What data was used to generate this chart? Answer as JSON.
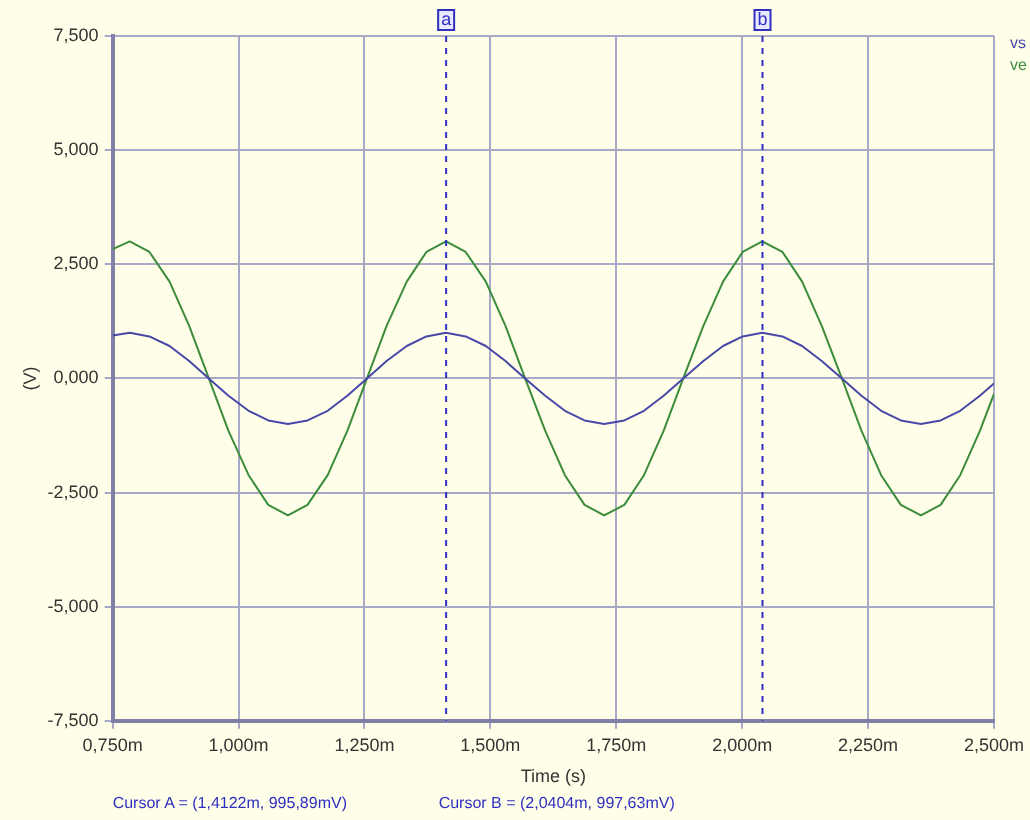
{
  "chart_data": {
    "type": "line",
    "xlabel": "Time (s)",
    "ylabel": "(V)",
    "x": [
      0.75,
      0.784,
      0.823,
      0.863,
      0.902,
      0.941,
      0.98,
      1.02,
      1.059,
      1.098,
      1.137,
      1.177,
      1.216,
      1.255,
      1.294,
      1.334,
      1.373,
      1.412,
      1.451,
      1.491,
      1.53,
      1.569,
      1.609,
      1.648,
      1.687,
      1.726,
      1.766,
      1.805,
      1.844,
      1.883,
      1.923,
      1.962,
      2.001,
      2.04,
      2.08,
      2.119,
      2.158,
      2.198,
      2.237,
      2.276,
      2.315,
      2.355,
      2.394,
      2.433,
      2.472,
      2.5
    ],
    "series": [
      {
        "name": "vs",
        "color": "#4848a8",
        "values": [
          0.94,
          1,
          0.92,
          0.71,
          0.38,
          0,
          -0.38,
          -0.71,
          -0.92,
          -1,
          -0.92,
          -0.71,
          -0.38,
          0,
          0.38,
          0.71,
          0.92,
          1,
          0.92,
          0.71,
          0.38,
          0,
          -0.38,
          -0.71,
          -0.92,
          -1,
          -0.92,
          -0.71,
          -0.38,
          0,
          0.38,
          0.71,
          0.92,
          1,
          0.92,
          0.71,
          0.38,
          0,
          -0.38,
          -0.71,
          -0.92,
          -1,
          -0.92,
          -0.71,
          -0.38,
          -0.11
        ]
      },
      {
        "name": "ve",
        "color": "#3c8c3c",
        "values": [
          2.83,
          3,
          2.77,
          2.12,
          1.15,
          0,
          -1.15,
          -2.12,
          -2.77,
          -3,
          -2.77,
          -2.12,
          -1.15,
          0,
          1.15,
          2.12,
          2.77,
          3,
          2.77,
          2.12,
          1.15,
          0,
          -1.15,
          -2.12,
          -2.77,
          -3,
          -2.77,
          -2.12,
          -1.15,
          0,
          1.15,
          2.12,
          2.77,
          3,
          2.77,
          2.12,
          1.15,
          0,
          -1.15,
          -2.12,
          -2.77,
          -3,
          -2.77,
          -2.12,
          -1.15,
          -0.34
        ]
      }
    ],
    "xlim": [
      0.75,
      2.5
    ],
    "xticks": [
      {
        "value": 0.75,
        "label": "0,750m"
      },
      {
        "value": 1,
        "label": "1,000m"
      },
      {
        "value": 1.25,
        "label": "1,250m"
      },
      {
        "value": 1.5,
        "label": "1,500m"
      },
      {
        "value": 1.75,
        "label": "1,750m"
      },
      {
        "value": 2,
        "label": "2,000m"
      },
      {
        "value": 2.25,
        "label": "2,250m"
      },
      {
        "value": 2.5,
        "label": "2,500m"
      }
    ],
    "ylim": [
      -7.5,
      7.5
    ],
    "yticks": [
      {
        "value": -7.5,
        "label": "-7,500"
      },
      {
        "value": -5,
        "label": "-5,000"
      },
      {
        "value": -2.5,
        "label": "-2,500"
      },
      {
        "value": 0,
        "label": "0,000"
      },
      {
        "value": 2.5,
        "label": "2,500"
      },
      {
        "value": 5,
        "label": "5,000"
      },
      {
        "value": 7.5,
        "label": "7,500"
      }
    ],
    "ref_lines": [
      {
        "axis": "x",
        "value": 1.4122,
        "label": "a",
        "color": "#3030c0",
        "line_style": "dashed"
      },
      {
        "axis": "x",
        "value": 2.0404,
        "label": "b",
        "color": "#3030c0",
        "line_style": "dashed"
      }
    ],
    "annotations": [
      "Cursor A = (1,4122m, 995,89mV)",
      "Cursor B = (2,0404m, 997,63mV)"
    ],
    "grid": true,
    "legend": "top right"
  }
}
